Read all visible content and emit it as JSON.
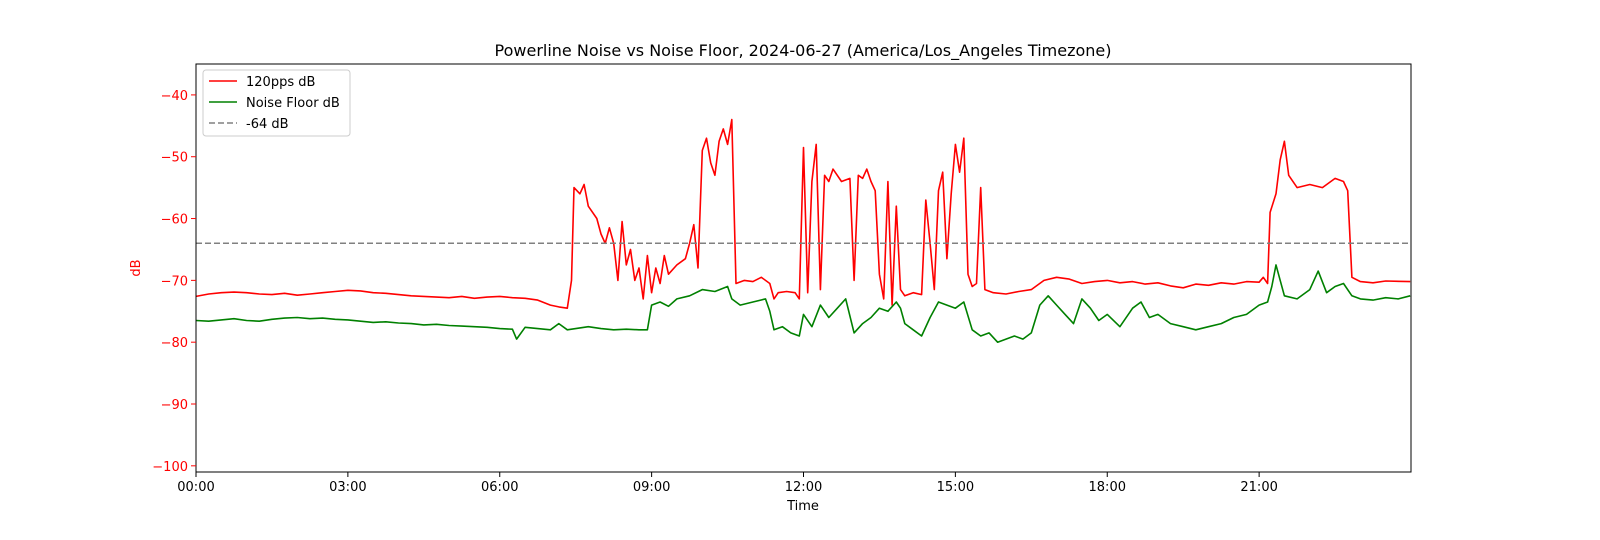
{
  "chart_data": {
    "type": "line",
    "title": "Powerline Noise vs Noise Floor, 2024-06-27 (America/Los_Angeles Timezone)",
    "xlabel": "Time",
    "ylabel": "dB",
    "xlim": [
      "00:00",
      "24:00"
    ],
    "ylim": [
      -101,
      -35
    ],
    "x_ticks": [
      "00:00",
      "03:00",
      "06:00",
      "09:00",
      "12:00",
      "15:00",
      "18:00",
      "21:00"
    ],
    "y_ticks": [
      -40,
      -50,
      -60,
      -70,
      -80,
      -90,
      -100
    ],
    "grid": false,
    "legend_position": "upper-left",
    "series": [
      {
        "name": "120pps dB",
        "color": "#ff0000",
        "style": "solid",
        "points": [
          [
            "00:00",
            -72.6
          ],
          [
            "00:15",
            -72.2
          ],
          [
            "00:30",
            -72.0
          ],
          [
            "00:45",
            -71.9
          ],
          [
            "01:00",
            -72.0
          ],
          [
            "01:15",
            -72.2
          ],
          [
            "01:30",
            -72.3
          ],
          [
            "01:45",
            -72.1
          ],
          [
            "02:00",
            -72.4
          ],
          [
            "02:15",
            -72.2
          ],
          [
            "02:30",
            -72.0
          ],
          [
            "02:45",
            -71.8
          ],
          [
            "03:00",
            -71.6
          ],
          [
            "03:15",
            -71.7
          ],
          [
            "03:30",
            -72.0
          ],
          [
            "03:45",
            -72.1
          ],
          [
            "04:00",
            -72.3
          ],
          [
            "04:15",
            -72.5
          ],
          [
            "04:30",
            -72.6
          ],
          [
            "04:45",
            -72.7
          ],
          [
            "05:00",
            -72.8
          ],
          [
            "05:15",
            -72.6
          ],
          [
            "05:30",
            -72.9
          ],
          [
            "05:45",
            -72.7
          ],
          [
            "06:00",
            -72.6
          ],
          [
            "06:15",
            -72.8
          ],
          [
            "06:30",
            -72.9
          ],
          [
            "06:45",
            -73.2
          ],
          [
            "07:00",
            -74.0
          ],
          [
            "07:10",
            -74.3
          ],
          [
            "07:20",
            -74.5
          ],
          [
            "07:25",
            -70.0
          ],
          [
            "07:28",
            -55.0
          ],
          [
            "07:35",
            -56.0
          ],
          [
            "07:40",
            -54.5
          ],
          [
            "07:45",
            -58.0
          ],
          [
            "07:55",
            -60.0
          ],
          [
            "08:00",
            -62.5
          ],
          [
            "08:05",
            -64.0
          ],
          [
            "08:10",
            -61.5
          ],
          [
            "08:15",
            -64.0
          ],
          [
            "08:20",
            -70.0
          ],
          [
            "08:25",
            -60.5
          ],
          [
            "08:30",
            -67.5
          ],
          [
            "08:35",
            -65.0
          ],
          [
            "08:40",
            -70.0
          ],
          [
            "08:45",
            -68.0
          ],
          [
            "08:50",
            -73.0
          ],
          [
            "08:55",
            -66.0
          ],
          [
            "09:00",
            -72.0
          ],
          [
            "09:05",
            -68.0
          ],
          [
            "09:10",
            -70.5
          ],
          [
            "09:15",
            -66.0
          ],
          [
            "09:20",
            -69.0
          ],
          [
            "09:30",
            -67.5
          ],
          [
            "09:40",
            -66.5
          ],
          [
            "09:45",
            -64.0
          ],
          [
            "09:50",
            -61.0
          ],
          [
            "09:55",
            -68.0
          ],
          [
            "10:00",
            -49.0
          ],
          [
            "10:05",
            -47.0
          ],
          [
            "10:10",
            -51.0
          ],
          [
            "10:15",
            -53.0
          ],
          [
            "10:20",
            -47.5
          ],
          [
            "10:25",
            -45.5
          ],
          [
            "10:30",
            -48.0
          ],
          [
            "10:35",
            -44.0
          ],
          [
            "10:40",
            -70.5
          ],
          [
            "10:50",
            -70.0
          ],
          [
            "11:00",
            -70.2
          ],
          [
            "11:10",
            -69.5
          ],
          [
            "11:20",
            -70.5
          ],
          [
            "11:25",
            -73.0
          ],
          [
            "11:30",
            -72.0
          ],
          [
            "11:40",
            -71.8
          ],
          [
            "11:50",
            -72.0
          ],
          [
            "11:55",
            -73.0
          ],
          [
            "12:00",
            -48.5
          ],
          [
            "12:05",
            -72.0
          ],
          [
            "12:10",
            -54.0
          ],
          [
            "12:15",
            -48.0
          ],
          [
            "12:20",
            -71.5
          ],
          [
            "12:25",
            -53.0
          ],
          [
            "12:30",
            -54.0
          ],
          [
            "12:35",
            -52.0
          ],
          [
            "12:45",
            -54.0
          ],
          [
            "12:55",
            -53.5
          ],
          [
            "13:00",
            -70.0
          ],
          [
            "13:05",
            -53.0
          ],
          [
            "13:10",
            -53.5
          ],
          [
            "13:15",
            -52.0
          ],
          [
            "13:20",
            -54.0
          ],
          [
            "13:25",
            -55.5
          ],
          [
            "13:30",
            -69.0
          ],
          [
            "13:35",
            -73.0
          ],
          [
            "13:40",
            -54.0
          ],
          [
            "13:45",
            -74.0
          ],
          [
            "13:50",
            -58.0
          ],
          [
            "13:55",
            -71.5
          ],
          [
            "14:00",
            -72.5
          ],
          [
            "14:10",
            -72.0
          ],
          [
            "14:20",
            -72.3
          ],
          [
            "14:25",
            -57.0
          ],
          [
            "14:30",
            -64.0
          ],
          [
            "14:35",
            -71.5
          ],
          [
            "14:40",
            -55.5
          ],
          [
            "14:45",
            -52.5
          ],
          [
            "14:50",
            -66.5
          ],
          [
            "14:55",
            -56.0
          ],
          [
            "15:00",
            -48.0
          ],
          [
            "15:05",
            -52.5
          ],
          [
            "15:10",
            -47.0
          ],
          [
            "15:15",
            -69.0
          ],
          [
            "15:20",
            -71.0
          ],
          [
            "15:25",
            -70.5
          ],
          [
            "15:30",
            -55.0
          ],
          [
            "15:35",
            -71.5
          ],
          [
            "15:45",
            -72.0
          ],
          [
            "16:00",
            -72.2
          ],
          [
            "16:15",
            -71.8
          ],
          [
            "16:30",
            -71.5
          ],
          [
            "16:45",
            -70.0
          ],
          [
            "17:00",
            -69.5
          ],
          [
            "17:15",
            -69.8
          ],
          [
            "17:30",
            -70.5
          ],
          [
            "17:45",
            -70.2
          ],
          [
            "18:00",
            -70.0
          ],
          [
            "18:15",
            -70.4
          ],
          [
            "18:30",
            -70.2
          ],
          [
            "18:45",
            -70.6
          ],
          [
            "19:00",
            -70.4
          ],
          [
            "19:15",
            -70.9
          ],
          [
            "19:30",
            -71.2
          ],
          [
            "19:45",
            -70.6
          ],
          [
            "20:00",
            -70.8
          ],
          [
            "20:15",
            -70.4
          ],
          [
            "20:30",
            -70.6
          ],
          [
            "20:45",
            -70.2
          ],
          [
            "21:00",
            -70.3
          ],
          [
            "21:05",
            -69.5
          ],
          [
            "21:10",
            -70.5
          ],
          [
            "21:13",
            -59.0
          ],
          [
            "21:20",
            -56.0
          ],
          [
            "21:25",
            -50.5
          ],
          [
            "21:30",
            -47.5
          ],
          [
            "21:35",
            -53.0
          ],
          [
            "21:45",
            -55.0
          ],
          [
            "22:00",
            -54.5
          ],
          [
            "22:15",
            -55.0
          ],
          [
            "22:30",
            -53.5
          ],
          [
            "22:40",
            -54.0
          ],
          [
            "22:45",
            -55.5
          ],
          [
            "22:50",
            -69.5
          ],
          [
            "23:00",
            -70.2
          ],
          [
            "23:15",
            -70.4
          ],
          [
            "23:30",
            -70.1
          ],
          [
            "23:59",
            -70.2
          ]
        ]
      },
      {
        "name": "Noise Floor dB",
        "color": "#008000",
        "style": "solid",
        "points": [
          [
            "00:00",
            -76.5
          ],
          [
            "00:15",
            -76.6
          ],
          [
            "00:30",
            -76.4
          ],
          [
            "00:45",
            -76.2
          ],
          [
            "01:00",
            -76.5
          ],
          [
            "01:15",
            -76.6
          ],
          [
            "01:30",
            -76.3
          ],
          [
            "01:45",
            -76.1
          ],
          [
            "02:00",
            -76.0
          ],
          [
            "02:15",
            -76.2
          ],
          [
            "02:30",
            -76.1
          ],
          [
            "02:45",
            -76.3
          ],
          [
            "03:00",
            -76.4
          ],
          [
            "03:15",
            -76.6
          ],
          [
            "03:30",
            -76.8
          ],
          [
            "03:45",
            -76.7
          ],
          [
            "04:00",
            -76.9
          ],
          [
            "04:15",
            -77.0
          ],
          [
            "04:30",
            -77.2
          ],
          [
            "04:45",
            -77.1
          ],
          [
            "05:00",
            -77.3
          ],
          [
            "05:15",
            -77.4
          ],
          [
            "05:30",
            -77.5
          ],
          [
            "05:45",
            -77.6
          ],
          [
            "06:00",
            -77.8
          ],
          [
            "06:15",
            -77.9
          ],
          [
            "06:20",
            -79.5
          ],
          [
            "06:30",
            -77.6
          ],
          [
            "06:45",
            -77.8
          ],
          [
            "07:00",
            -78.0
          ],
          [
            "07:10",
            -77.0
          ],
          [
            "07:20",
            -78.0
          ],
          [
            "07:30",
            -77.8
          ],
          [
            "07:45",
            -77.5
          ],
          [
            "08:00",
            -77.8
          ],
          [
            "08:15",
            -78.0
          ],
          [
            "08:30",
            -77.9
          ],
          [
            "08:45",
            -78.0
          ],
          [
            "08:55",
            -78.0
          ],
          [
            "09:00",
            -74.0
          ],
          [
            "09:10",
            -73.5
          ],
          [
            "09:20",
            -74.2
          ],
          [
            "09:30",
            -73.0
          ],
          [
            "09:45",
            -72.5
          ],
          [
            "10:00",
            -71.5
          ],
          [
            "10:15",
            -71.8
          ],
          [
            "10:30",
            -71.0
          ],
          [
            "10:35",
            -73.0
          ],
          [
            "10:45",
            -74.0
          ],
          [
            "11:00",
            -73.5
          ],
          [
            "11:15",
            -73.0
          ],
          [
            "11:20",
            -75.0
          ],
          [
            "11:25",
            -78.0
          ],
          [
            "11:35",
            -77.5
          ],
          [
            "11:45",
            -78.5
          ],
          [
            "11:55",
            -79.0
          ],
          [
            "12:00",
            -75.5
          ],
          [
            "12:10",
            -77.5
          ],
          [
            "12:20",
            -74.0
          ],
          [
            "12:30",
            -76.0
          ],
          [
            "12:40",
            -74.5
          ],
          [
            "12:50",
            -73.0
          ],
          [
            "13:00",
            -78.5
          ],
          [
            "13:10",
            -77.0
          ],
          [
            "13:20",
            -76.0
          ],
          [
            "13:30",
            -74.5
          ],
          [
            "13:40",
            -75.0
          ],
          [
            "13:50",
            -73.5
          ],
          [
            "13:55",
            -74.5
          ],
          [
            "14:00",
            -77.0
          ],
          [
            "14:10",
            -78.0
          ],
          [
            "14:20",
            -79.0
          ],
          [
            "14:30",
            -76.0
          ],
          [
            "14:40",
            -73.5
          ],
          [
            "14:50",
            -74.0
          ],
          [
            "15:00",
            -74.5
          ],
          [
            "15:10",
            -73.5
          ],
          [
            "15:20",
            -78.0
          ],
          [
            "15:30",
            -79.0
          ],
          [
            "15:40",
            -78.5
          ],
          [
            "15:50",
            -80.0
          ],
          [
            "16:00",
            -79.5
          ],
          [
            "16:10",
            -79.0
          ],
          [
            "16:20",
            -79.5
          ],
          [
            "16:30",
            -78.5
          ],
          [
            "16:40",
            -74.0
          ],
          [
            "16:50",
            -72.5
          ],
          [
            "17:00",
            -74.0
          ],
          [
            "17:10",
            -75.5
          ],
          [
            "17:20",
            -77.0
          ],
          [
            "17:30",
            -73.0
          ],
          [
            "17:40",
            -74.5
          ],
          [
            "17:50",
            -76.5
          ],
          [
            "18:00",
            -75.5
          ],
          [
            "18:15",
            -77.5
          ],
          [
            "18:30",
            -74.5
          ],
          [
            "18:40",
            -73.5
          ],
          [
            "18:50",
            -76.0
          ],
          [
            "19:00",
            -75.5
          ],
          [
            "19:15",
            -77.0
          ],
          [
            "19:30",
            -77.5
          ],
          [
            "19:45",
            -78.0
          ],
          [
            "20:00",
            -77.5
          ],
          [
            "20:15",
            -77.0
          ],
          [
            "20:30",
            -76.0
          ],
          [
            "20:45",
            -75.5
          ],
          [
            "21:00",
            -74.0
          ],
          [
            "21:10",
            -73.5
          ],
          [
            "21:15",
            -71.0
          ],
          [
            "21:20",
            -67.5
          ],
          [
            "21:25",
            -70.0
          ],
          [
            "21:30",
            -72.5
          ],
          [
            "21:45",
            -73.0
          ],
          [
            "22:00",
            -71.5
          ],
          [
            "22:10",
            -68.5
          ],
          [
            "22:20",
            -72.0
          ],
          [
            "22:30",
            -71.0
          ],
          [
            "22:40",
            -70.5
          ],
          [
            "22:50",
            -72.5
          ],
          [
            "23:00",
            -73.0
          ],
          [
            "23:15",
            -73.2
          ],
          [
            "23:30",
            -72.8
          ],
          [
            "23:45",
            -73.0
          ],
          [
            "23:59",
            -72.5
          ]
        ]
      },
      {
        "name": "-64 dB",
        "color": "#808080",
        "style": "dashed",
        "points": [
          [
            "00:00",
            -64
          ],
          [
            "23:59",
            -64
          ]
        ]
      }
    ]
  }
}
